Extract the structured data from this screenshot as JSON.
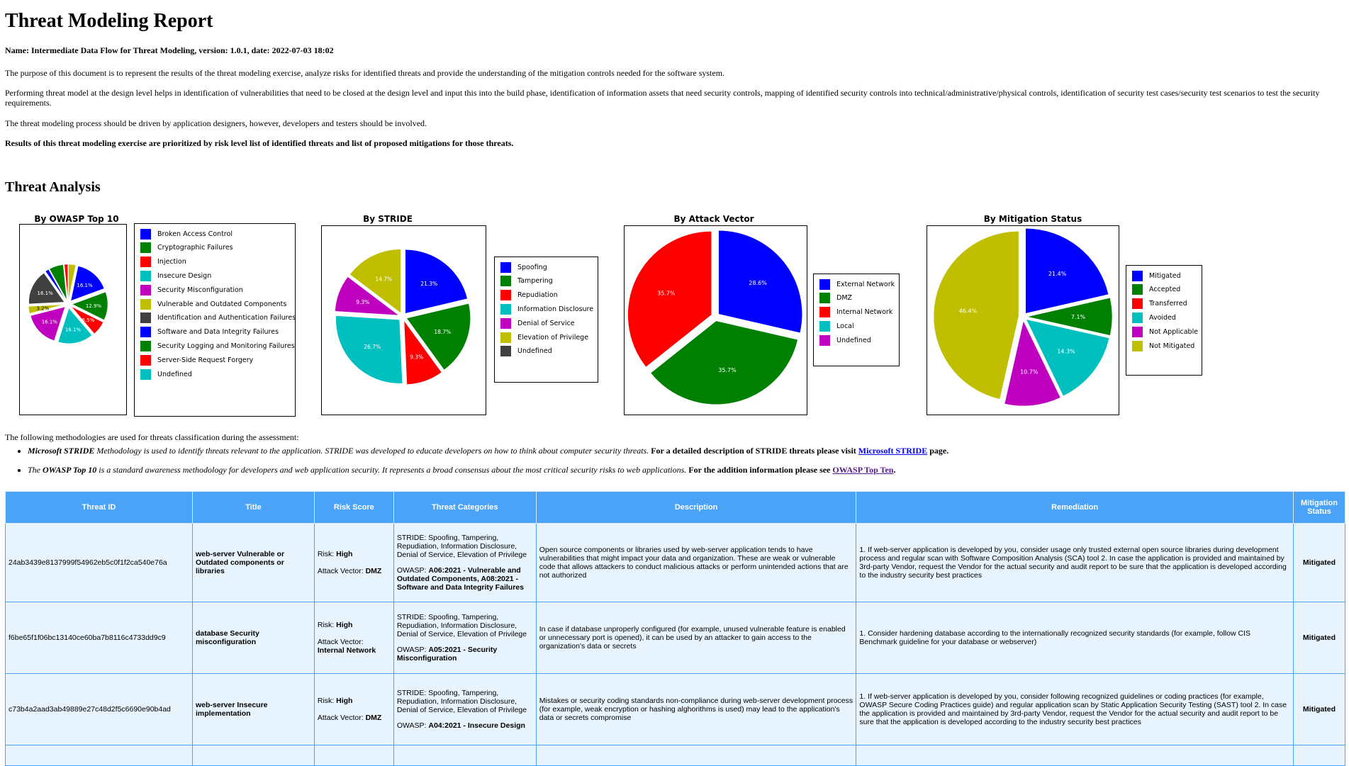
{
  "report": {
    "title": "Threat Modeling Report",
    "name_line": "Name: Intermediate Data Flow for Threat Modeling, version: 1.0.1, date: 2022-07-03 18:02",
    "para1": "The purpose of this document is to represent the results of the threat modeling exercise, analyze risks for identified threats and provide the understanding of the mitigation controls needed for the software system.",
    "para2": "Performing threat model at the design level helps in identification of vulnerabilities that need to be closed at the design level and input this into the build phase, identification of information assets that need security controls, mapping of identified security controls into technical/administrative/physical controls, identification of security test cases/security test scenarios to test the security requirements.",
    "para3": "The threat modeling process should be driven by application designers, however, developers and testers should be involved.",
    "para4": "Results of this threat modeling exercise are prioritized by risk level list of identified threats and list of proposed mitigations for those threats."
  },
  "analysis": {
    "heading": "Threat Analysis",
    "intro": "The following methodologies are used for threats classification during the assessment:",
    "stride_bold": "Microsoft STRIDE",
    "stride_italic": " Methodology is used to identify threats relevant to the application. STRIDE was developed to educate developers on how to think about computer security threats. ",
    "stride_tail": " For a detailed description of STRIDE threats please visit ",
    "stride_link": "Microsoft STRIDE",
    "stride_end": " page.",
    "owasp_italic_pre": "The ",
    "owasp_bold": "OWASP Top 10",
    "owasp_italic": " is a standard awareness methodology for developers and web application security. It represents a broad consensus about the most critical security risks to web applications. ",
    "owasp_tail": " For the addition information please see ",
    "owasp_link": "OWASP Top Ten",
    "owasp_end": "."
  },
  "colors": {
    "blue": "#0000ff",
    "green": "#008000",
    "red": "#ff0000",
    "cyan": "#00bfbf",
    "magenta": "#bf00bf",
    "olive": "#bfbf00",
    "dark": "#404040",
    "header_bg": "#4aa3f7",
    "row_bg": "#e8f4fd"
  },
  "chart_data": [
    {
      "type": "pie",
      "title": "By OWASP Top 10",
      "labels": [
        "Broken Access Control",
        "Cryptographic Failures",
        "Injection",
        "Insecure Design",
        "Security Misconfiguration",
        "Vulnerable and Outdated Components",
        "Identification and Authentication Failures",
        "Software and Data Integrity Failures",
        "Security Logging and Monitoring Failures",
        "Server-Side Request Forgery",
        "Undefined"
      ],
      "colors": [
        "#0000ff",
        "#008000",
        "#ff0000",
        "#00bfbf",
        "#bf00bf",
        "#bfbf00",
        "#404040",
        "#0000ff",
        "#008000",
        "#ff0000",
        "#00bfbf"
      ],
      "slices": [
        {
          "label": "Server-Side Request Forgery",
          "value": 1.6,
          "color": "#ff0000",
          "pct": ""
        },
        {
          "label": "Security Logging and Monitoring Failures",
          "value": 6.5,
          "color": "#008000",
          "pct": ""
        },
        {
          "label": "Software and Data Integrity Failures",
          "value": 1.6,
          "color": "#0000ff",
          "pct": ""
        },
        {
          "label": "Identification and Authentication Failures",
          "value": 16.1,
          "color": "#404040",
          "pct": "16.1%"
        },
        {
          "label": "Vulnerable and Outdated Components",
          "value": 3.2,
          "color": "#bfbf00",
          "pct": "3.2%"
        },
        {
          "label": "Security Misconfiguration",
          "value": 16.1,
          "color": "#bf00bf",
          "pct": "16.1%"
        },
        {
          "label": "Insecure Design",
          "value": 16.1,
          "color": "#00bfbf",
          "pct": "16.1%"
        },
        {
          "label": "Injection",
          "value": 6.5,
          "color": "#ff0000",
          "pct": "6.5%"
        },
        {
          "label": "Cryptographic Failures",
          "value": 12.9,
          "color": "#008000",
          "pct": "12.9%"
        },
        {
          "label": "Broken Access Control",
          "value": 16.1,
          "color": "#0000ff",
          "pct": "16.1%"
        },
        {
          "label": "Undefined",
          "value": 3.3,
          "color": "#bfbf00",
          "pct": ""
        }
      ]
    },
    {
      "type": "pie",
      "title": "By STRIDE",
      "labels": [
        "Spoofing",
        "Tampering",
        "Repudiation",
        "Information Disclosure",
        "Denial of Service",
        "Elevation of Privilege",
        "Undefined"
      ],
      "colors": [
        "#0000ff",
        "#008000",
        "#ff0000",
        "#00bfbf",
        "#bf00bf",
        "#bfbf00",
        "#404040"
      ],
      "slices": [
        {
          "label": "Elevation of Privilege",
          "value": 14.7,
          "color": "#bfbf00",
          "pct": "14.7%"
        },
        {
          "label": "Denial of Service",
          "value": 9.3,
          "color": "#bf00bf",
          "pct": "9.3%"
        },
        {
          "label": "Information Disclosure",
          "value": 26.7,
          "color": "#00bfbf",
          "pct": "26.7%"
        },
        {
          "label": "Repudiation",
          "value": 9.3,
          "color": "#ff0000",
          "pct": "9.3%"
        },
        {
          "label": "Tampering",
          "value": 18.7,
          "color": "#008000",
          "pct": "18.7%"
        },
        {
          "label": "Spoofing",
          "value": 21.3,
          "color": "#0000ff",
          "pct": "21.3%"
        }
      ]
    },
    {
      "type": "pie",
      "title": "By Attack Vector",
      "labels": [
        "External Network",
        "DMZ",
        "Internal Network",
        "Local",
        "Undefined"
      ],
      "colors": [
        "#0000ff",
        "#008000",
        "#ff0000",
        "#00bfbf",
        "#bf00bf"
      ],
      "slices": [
        {
          "label": "Internal Network",
          "value": 35.7,
          "color": "#ff0000",
          "pct": "35.7%"
        },
        {
          "label": "DMZ",
          "value": 35.7,
          "color": "#008000",
          "pct": "35.7%"
        },
        {
          "label": "External Network",
          "value": 28.6,
          "color": "#0000ff",
          "pct": "28.6%"
        }
      ]
    },
    {
      "type": "pie",
      "title": "By Mitigation Status",
      "labels": [
        "Mitigated",
        "Accepted",
        "Transferred",
        "Avoided",
        "Not Applicable",
        "Not Mitigated"
      ],
      "colors": [
        "#0000ff",
        "#008000",
        "#ff0000",
        "#00bfbf",
        "#bf00bf",
        "#bfbf00"
      ],
      "slices": [
        {
          "label": "Not Mitigated",
          "value": 46.4,
          "color": "#bfbf00",
          "pct": "46.4%"
        },
        {
          "label": "Not Applicable",
          "value": 10.7,
          "color": "#bf00bf",
          "pct": "10.7%"
        },
        {
          "label": "Avoided",
          "value": 14.3,
          "color": "#00bfbf",
          "pct": "14.3%"
        },
        {
          "label": "Accepted",
          "value": 7.1,
          "color": "#008000",
          "pct": "7.1%"
        },
        {
          "label": "Mitigated",
          "value": 21.4,
          "color": "#0000ff",
          "pct": "21.4%"
        }
      ]
    }
  ],
  "table": {
    "headers": [
      "Threat ID",
      "Title",
      "Risk Score",
      "Threat Categories",
      "Description",
      "Remediation",
      "Mitigation Status"
    ],
    "risk_label": "Risk: ",
    "vector_label": "Attack Vector: ",
    "stride_prefix": "STRIDE: ",
    "owasp_prefix": "OWASP: ",
    "rows": [
      {
        "id": "24ab3439e8137999f54962eb5c0f1f2ca540e76a",
        "title": "web-server Vulnerable or Outdated components or libraries",
        "risk": "High",
        "vector": "DMZ",
        "stride": "Spoofing, Tampering, Repudiation, Information Disclosure, Denial of Service, Elevation of Privilege",
        "owasp": "A06:2021 - Vulnerable and Outdated Components, A08:2021 - Software and Data Integrity Failures",
        "description": "Open source components or libraries used by web-server application tends to have vulnerabilities that might impact your data and organization. These are weak or vulnerable code that allows attackers to conduct malicious attacks or perform unintended actions that are not authorized",
        "remediation": "1. If web-server application is developed by you, consider usage only trusted external open source libraries during development process and regular scan with Software Composition Analysis (SCA) tool 2. In case the application is provided and maintained by 3rd-party Vendor, request the Vendor for the actual security and audit report to be sure that the application is developed according to the industry security best practices",
        "status": "Mitigated"
      },
      {
        "id": "f6be65f1f06bc13140ce60ba7b8116c4733dd9c9",
        "title": "database Security misconfiguration",
        "risk": "High",
        "vector": "Internal Network",
        "stride": "Spoofing, Tampering, Repudiation, Information Disclosure, Denial of Service, Elevation of Privilege",
        "owasp": "A05:2021 - Security Misconfiguration",
        "description": "In case if database unproperly configured (for example, unused vulnerable feature is enabled or unnecessary port is opened), it can be used by an attacker to gain access to the organization's data or secrets",
        "remediation": "1. Consider hardening database according to the internationally recognized security standards (for example, follow CIS Benchmark guideline for your database or webserver)",
        "status": "Mitigated"
      },
      {
        "id": "c73b4a2aad3ab49889e27c48d2f5c6690e90b4ad",
        "title": "web-server Insecure implementation",
        "risk": "High",
        "vector": "DMZ",
        "stride": "Spoofing, Tampering, Repudiation, Information Disclosure, Denial of Service, Elevation of Privilege",
        "owasp": "A04:2021 - Insecure Design",
        "description": "Mistakes or security coding standards non-compliance during web-server development process (for example, weak encryption or hashing alghorithms is used) may lead to the application's data or secrets compromise",
        "remediation": "1. If web-server application is developed by you, consider following recognized guidelines or coding practices (for example, OWASP Secure Coding Practices guide) and regular application scan by Static Application Security Testing (SAST) tool 2. In case the application is provided and maintained by 3rd-party Vendor, request the Vendor for the actual security and audit report to be sure that the application is developed according to the industry security best practices",
        "status": "Mitigated"
      }
    ]
  }
}
